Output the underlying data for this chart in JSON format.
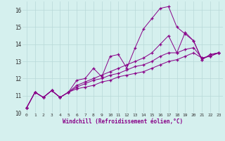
{
  "title": "",
  "xlabel": "Windchill (Refroidissement éolien,°C)",
  "ylabel": "",
  "bg_color": "#d5f0ee",
  "grid_color": "#b8d8d8",
  "line_color": "#880088",
  "marker": "+",
  "xlim": [
    -0.5,
    23.5
  ],
  "ylim": [
    10,
    16.5
  ],
  "xticks": [
    0,
    1,
    2,
    3,
    4,
    5,
    6,
    7,
    8,
    9,
    10,
    11,
    12,
    13,
    14,
    15,
    16,
    17,
    18,
    19,
    20,
    21,
    22,
    23
  ],
  "yticks": [
    10,
    11,
    12,
    13,
    14,
    15,
    16
  ],
  "series": [
    [
      10.3,
      11.2,
      10.9,
      11.3,
      10.9,
      11.2,
      11.9,
      12.0,
      12.6,
      12.1,
      13.3,
      13.4,
      12.6,
      13.8,
      14.9,
      15.5,
      16.1,
      16.2,
      15.0,
      14.6,
      14.2,
      13.1,
      13.4,
      13.5
    ],
    [
      10.3,
      11.2,
      10.9,
      11.3,
      10.9,
      11.2,
      11.6,
      11.8,
      12.0,
      12.2,
      12.4,
      12.6,
      12.8,
      13.0,
      13.2,
      13.5,
      14.0,
      14.5,
      13.5,
      14.7,
      14.2,
      13.1,
      13.4,
      13.5
    ],
    [
      10.3,
      11.2,
      10.9,
      11.3,
      10.9,
      11.2,
      11.5,
      11.7,
      11.9,
      12.0,
      12.2,
      12.3,
      12.5,
      12.7,
      12.8,
      13.0,
      13.3,
      13.5,
      13.5,
      13.7,
      13.8,
      13.2,
      13.3,
      13.5
    ],
    [
      10.3,
      11.2,
      10.9,
      11.3,
      10.9,
      11.2,
      11.4,
      11.5,
      11.6,
      11.8,
      11.9,
      12.1,
      12.2,
      12.3,
      12.4,
      12.6,
      12.8,
      13.0,
      13.1,
      13.3,
      13.5,
      13.2,
      13.3,
      13.5
    ]
  ]
}
